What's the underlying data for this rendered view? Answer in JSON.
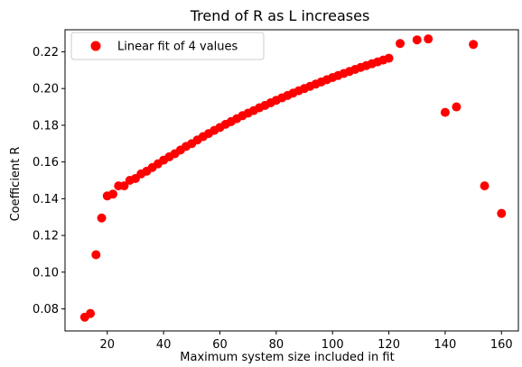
{
  "chart_data": {
    "type": "scatter",
    "title": "Trend of R as L increases",
    "xlabel": "Maximum system size included in fit",
    "ylabel": "Coefficient R",
    "xlim": [
      5,
      166
    ],
    "ylim": [
      0.068,
      0.232
    ],
    "xticks": [
      20,
      40,
      60,
      80,
      100,
      120,
      140,
      160
    ],
    "yticks": [
      0.08,
      0.1,
      0.12,
      0.14,
      0.16,
      0.18,
      0.2,
      0.22
    ],
    "grid": false,
    "legend_position": "top-left",
    "series": [
      {
        "name": "Linear fit of 4 values",
        "color": "#ff0000",
        "marker": "circle",
        "x": [
          12,
          14,
          16,
          18,
          20,
          22,
          24,
          26,
          28,
          30,
          32,
          34,
          36,
          38,
          40,
          42,
          44,
          46,
          48,
          50,
          52,
          54,
          56,
          58,
          60,
          62,
          64,
          66,
          68,
          70,
          72,
          74,
          76,
          78,
          80,
          82,
          84,
          86,
          88,
          90,
          92,
          94,
          96,
          98,
          100,
          102,
          104,
          106,
          108,
          110,
          112,
          114,
          116,
          118,
          120,
          124,
          130,
          134,
          140,
          144,
          150,
          154,
          160
        ],
        "y": [
          0.0755,
          0.0775,
          0.1095,
          0.1295,
          0.1415,
          0.1425,
          0.147,
          0.147,
          0.15,
          0.151,
          0.1535,
          0.155,
          0.157,
          0.159,
          0.161,
          0.1628,
          0.1645,
          0.1665,
          0.1685,
          0.17,
          0.172,
          0.1738,
          0.1755,
          0.1772,
          0.1788,
          0.1805,
          0.182,
          0.1836,
          0.1852,
          0.1866,
          0.188,
          0.1895,
          0.1908,
          0.1922,
          0.1936,
          0.1949,
          0.1962,
          0.1975,
          0.1988,
          0.2,
          0.2012,
          0.2024,
          0.2036,
          0.2048,
          0.206,
          0.2071,
          0.2082,
          0.2093,
          0.2104,
          0.2115,
          0.2125,
          0.2135,
          0.2145,
          0.2155,
          0.2165,
          0.2245,
          0.2265,
          0.227,
          0.187,
          0.19,
          0.224,
          0.147,
          0.132
        ]
      }
    ]
  }
}
